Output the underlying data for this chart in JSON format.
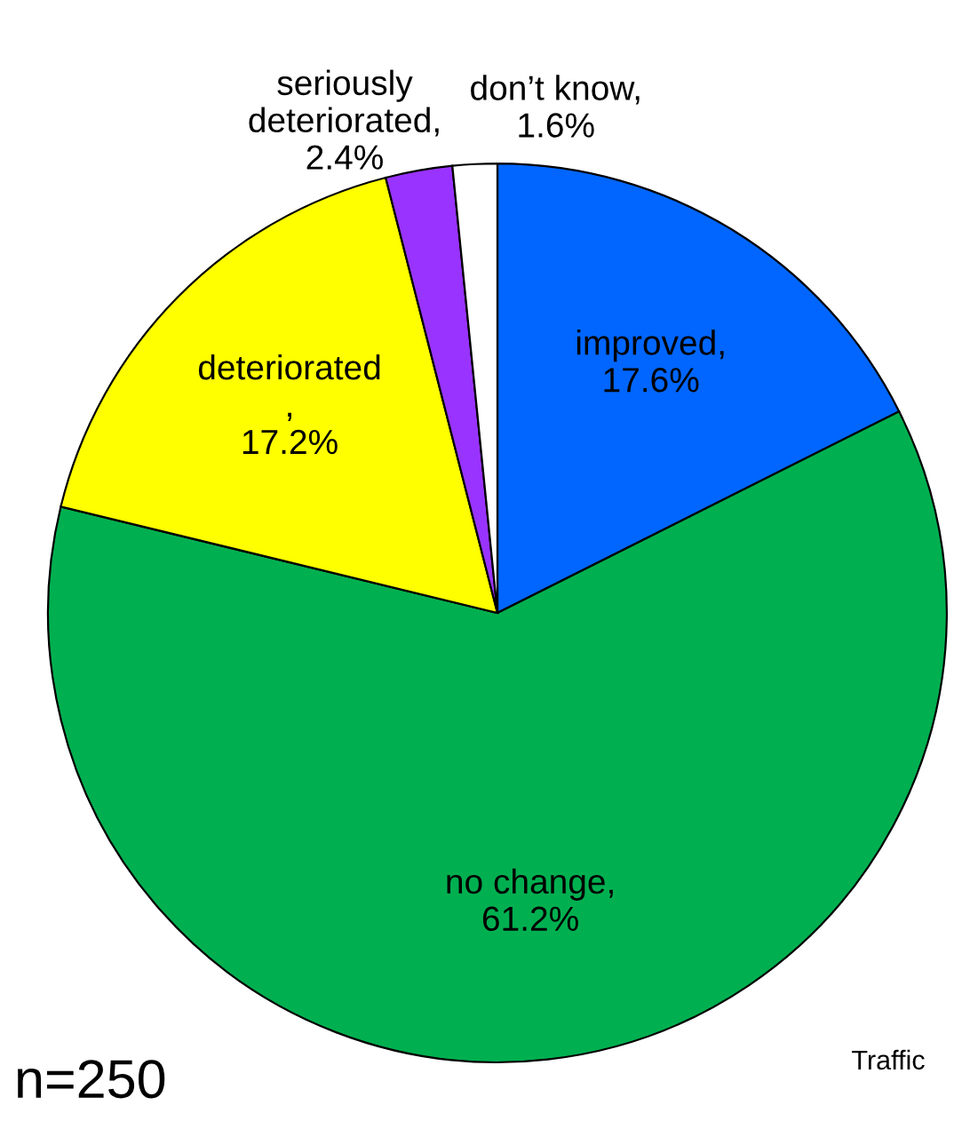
{
  "chart_data": {
    "type": "pie",
    "categories": [
      "improved",
      "no change",
      "deteriorated",
      "seriously deteriorated",
      "don’t know"
    ],
    "values": [
      17.6,
      61.2,
      17.2,
      2.4,
      1.6
    ],
    "colors": [
      "#0066ff",
      "#00b050",
      "#ffff00",
      "#9933ff",
      "#ffffff"
    ],
    "value_labels": [
      ",\n17.6%",
      ",\n61.2%",
      "\n,\n17.2%",
      ",\n2.4%",
      ",\n1.6%"
    ],
    "annotations": [
      "Traffic",
      "n=250"
    ],
    "legend": false
  }
}
